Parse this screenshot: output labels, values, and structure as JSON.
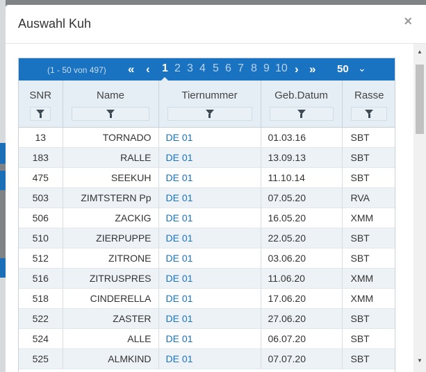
{
  "modal": {
    "title": "Auswahl Kuh",
    "close": "×"
  },
  "pager": {
    "info": "(1 - 50 von 497)",
    "first_icon": "«",
    "prev_icon": "‹",
    "pages": [
      "1",
      "2",
      "3",
      "4",
      "5",
      "6",
      "7",
      "8",
      "9",
      "10"
    ],
    "active_page": "1",
    "next_icon": "›",
    "last_icon": "»",
    "page_size": "50",
    "page_size_caret": "⌄"
  },
  "table": {
    "columns": [
      "SNR",
      "Name",
      "Tiernummer",
      "Geb.Datum",
      "Rasse"
    ],
    "rows": [
      {
        "snr": "13",
        "name": "TORNADO",
        "tiernummer": "DE 01",
        "geb": "01.03.16",
        "rasse": "SBT"
      },
      {
        "snr": "183",
        "name": "RALLE",
        "tiernummer": "DE 01",
        "geb": "13.09.13",
        "rasse": "SBT"
      },
      {
        "snr": "475",
        "name": "SEEKUH",
        "tiernummer": "DE 01",
        "geb": "11.10.14",
        "rasse": "SBT"
      },
      {
        "snr": "503",
        "name": "ZIMTSTERN Pp",
        "tiernummer": "DE 01",
        "geb": "07.05.20",
        "rasse": "RVA"
      },
      {
        "snr": "506",
        "name": "ZACKIG",
        "tiernummer": "DE 01",
        "geb": "16.05.20",
        "rasse": "XMM"
      },
      {
        "snr": "510",
        "name": "ZIERPUPPE",
        "tiernummer": "DE 01",
        "geb": "22.05.20",
        "rasse": "SBT"
      },
      {
        "snr": "512",
        "name": "ZITRONE",
        "tiernummer": "DE 01",
        "geb": "03.06.20",
        "rasse": "SBT"
      },
      {
        "snr": "516",
        "name": "ZITRUSPRES",
        "tiernummer": "DE 01",
        "geb": "11.06.20",
        "rasse": "XMM"
      },
      {
        "snr": "518",
        "name": "CINDERELLA",
        "tiernummer": "DE 01",
        "geb": "17.06.20",
        "rasse": "XMM"
      },
      {
        "snr": "522",
        "name": "ZASTER",
        "tiernummer": "DE 01",
        "geb": "27.06.20",
        "rasse": "SBT"
      },
      {
        "snr": "524",
        "name": "ALLE",
        "tiernummer": "DE 01",
        "geb": "06.07.20",
        "rasse": "SBT"
      },
      {
        "snr": "525",
        "name": "ALMKIND",
        "tiernummer": "DE 01",
        "geb": "07.07.20",
        "rasse": "SBT"
      }
    ]
  },
  "scrollbar": {
    "up_icon": "▲",
    "down_icon": "▼"
  },
  "icons": {
    "filter": "filter-icon",
    "close": "close-icon"
  },
  "colors": {
    "accent": "#1a73c0",
    "header_bg": "#e6eef5",
    "row_alt": "#edf2f6"
  }
}
